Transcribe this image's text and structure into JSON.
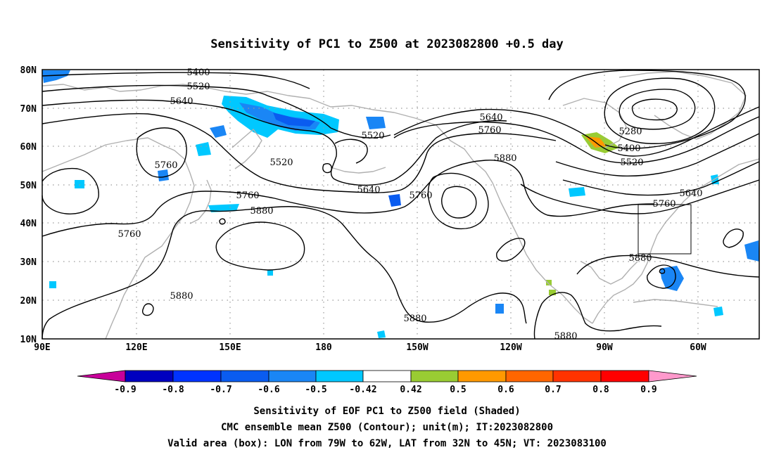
{
  "title": "Sensitivity of PC1 to Z500 at 2023082800 +0.5 day",
  "map": {
    "lat_ticks": [
      "80N",
      "70N",
      "60N",
      "50N",
      "40N",
      "30N",
      "20N",
      "10N"
    ],
    "lon_ticks": [
      "90E",
      "120E",
      "150E",
      "180",
      "150W",
      "120W",
      "90W",
      "60W"
    ],
    "extent": {
      "lon_west": "90E",
      "lon_east": "45W",
      "lat_south": "10N",
      "lat_north": "80N"
    },
    "gridlines": true,
    "coastline_color": "#b0b0b0",
    "contour_color": "#000000",
    "contours": [
      {
        "label": "5400",
        "value": 5400
      },
      {
        "label": "5520",
        "value": 5520
      },
      {
        "label": "5640",
        "value": 5640
      },
      {
        "label": "5520",
        "value": 5520
      },
      {
        "label": "5760",
        "value": 5760
      },
      {
        "label": "5520",
        "value": 5520
      },
      {
        "label": "5760",
        "value": 5760
      },
      {
        "label": "5760",
        "value": 5760
      },
      {
        "label": "5880",
        "value": 5880
      },
      {
        "label": "5640",
        "value": 5640
      },
      {
        "label": "5760",
        "value": 5760
      },
      {
        "label": "5640",
        "value": 5640
      },
      {
        "label": "5760",
        "value": 5760
      },
      {
        "label": "5880",
        "value": 5880
      },
      {
        "label": "5280",
        "value": 5280
      },
      {
        "label": "5400",
        "value": 5400
      },
      {
        "label": "5520",
        "value": 5520
      },
      {
        "label": "5640",
        "value": 5640
      },
      {
        "label": "5760",
        "value": 5760
      },
      {
        "label": "5880",
        "value": 5880
      },
      {
        "label": "5880",
        "value": 5880
      },
      {
        "label": "5880",
        "value": 5880
      },
      {
        "label": "5880",
        "value": 5880
      }
    ],
    "valid_box": {
      "lon_from": "79W",
      "lon_to": "62W",
      "lat_from": "32N",
      "lat_to": "45N"
    }
  },
  "colorbar": {
    "labels": [
      "-0.9",
      "-0.8",
      "-0.7",
      "-0.6",
      "-0.5",
      "-0.42",
      "0.42",
      "0.5",
      "0.6",
      "0.7",
      "0.8",
      "0.9"
    ],
    "colors": [
      "#a000c8",
      "#0000c0",
      "#0033ff",
      "#0a5cf0",
      "#1a86f5",
      "#00c8ff",
      "#ffffff",
      "#99cc33",
      "#ff9900",
      "#ff6600",
      "#ff3300",
      "#ff0000",
      "#ff99cc"
    ],
    "left_end_color": "#c8009a",
    "right_end_color": "#ff99cc"
  },
  "caption": {
    "line1": "Sensitivity of EOF PC1 to Z500 field (Shaded)",
    "line2": "CMC ensemble mean Z500 (Contour); unit(m); IT:2023082800",
    "line3": "Valid area (box): LON from 79W to 62W, LAT from 32N to 45N; VT: 2023083100"
  }
}
